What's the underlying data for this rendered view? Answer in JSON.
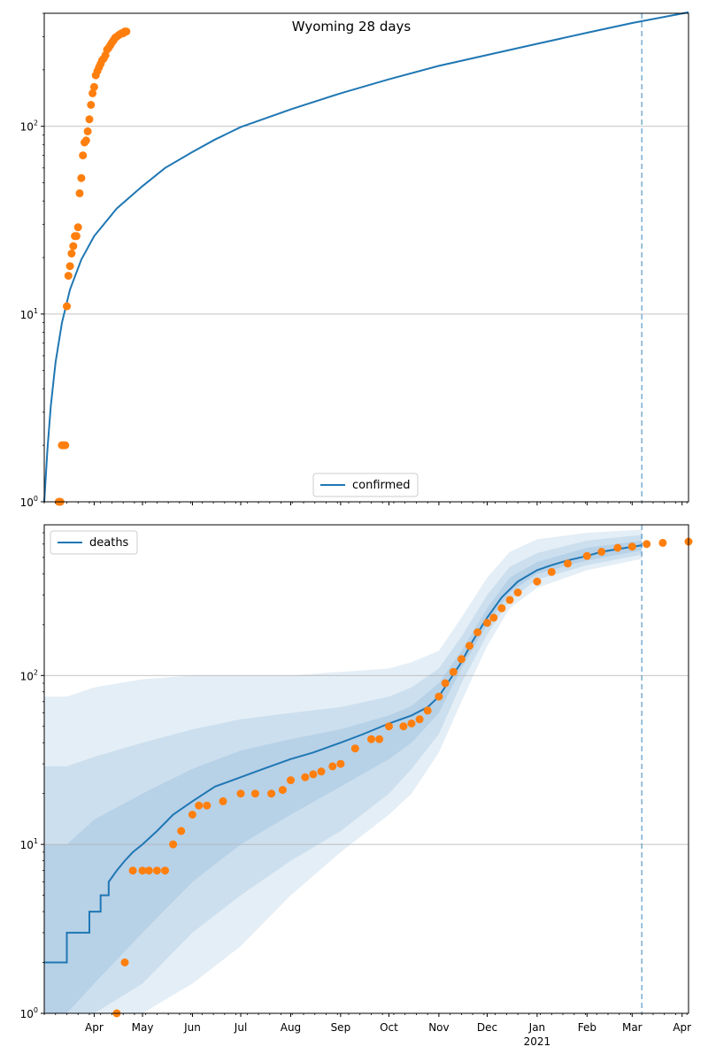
{
  "colors": {
    "model": "#1f77b4",
    "observed": "#ff7f0e",
    "grid": "#b0b0b0",
    "band": "#1f77b4",
    "forecast_line": "#1f77b4"
  },
  "chart_data": [
    {
      "type": "line",
      "title": "Wyoming 28 days",
      "xlabel": "",
      "ylabel": "",
      "yscale": "log",
      "ylim": [
        1,
        400
      ],
      "xlim": [
        "2020-03-01",
        "2021-04-05"
      ],
      "grid": "horizontal major",
      "legend": "lower center",
      "forecast_start": "2021-03-07",
      "y_ticks": [
        {
          "base": "10",
          "exp": "0",
          "value": 1
        },
        {
          "base": "10",
          "exp": "1",
          "value": 10
        },
        {
          "base": "10",
          "exp": "2",
          "value": 100
        }
      ],
      "series": [
        {
          "name": "confirmed",
          "kind": "line",
          "x": [
            "2020-03-01",
            "2020-03-03",
            "2020-03-05",
            "2020-03-08",
            "2020-03-12",
            "2020-03-17",
            "2020-03-24",
            "2020-04-01",
            "2020-04-15",
            "2020-05-01",
            "2020-05-15",
            "2020-06-01",
            "2020-06-15",
            "2020-07-01",
            "2020-08-01",
            "2020-09-01",
            "2020-10-01",
            "2020-11-01",
            "2020-12-01",
            "2021-01-01",
            "2021-02-01",
            "2021-03-01",
            "2021-04-05"
          ],
          "values": [
            1,
            1.9,
            3.2,
            5.5,
            9,
            13.5,
            19.5,
            26,
            36.5,
            48,
            60,
            73,
            85,
            99,
            123,
            150,
            178,
            210,
            240,
            275,
            315,
            355,
            405
          ]
        },
        {
          "name": "",
          "kind": "scatter",
          "x": [
            "2020-03-10",
            "2020-03-11",
            "2020-03-12",
            "2020-03-13",
            "2020-03-14",
            "2020-03-15",
            "2020-03-16",
            "2020-03-17",
            "2020-03-18",
            "2020-03-19",
            "2020-03-20",
            "2020-03-21",
            "2020-03-22",
            "2020-03-23",
            "2020-03-24",
            "2020-03-25",
            "2020-03-26",
            "2020-03-27",
            "2020-03-28",
            "2020-03-29",
            "2020-03-30",
            "2020-03-31",
            "2020-04-01",
            "2020-04-02",
            "2020-04-03",
            "2020-04-04",
            "2020-04-05",
            "2020-04-06",
            "2020-04-07",
            "2020-04-08",
            "2020-04-09",
            "2020-04-10",
            "2020-04-11",
            "2020-04-12",
            "2020-04-13",
            "2020-04-14",
            "2020-04-15",
            "2020-04-16",
            "2020-04-17",
            "2020-04-18",
            "2020-04-19",
            "2020-04-20",
            "2020-04-21"
          ],
          "values": [
            1,
            1,
            2,
            2,
            2,
            11,
            16,
            18,
            21,
            23,
            26,
            26,
            29,
            44,
            53,
            70,
            82,
            84,
            94,
            109,
            130,
            150,
            162,
            187,
            197,
            206,
            215,
            225,
            230,
            239,
            256,
            262,
            270,
            279,
            287,
            296,
            300,
            305,
            309,
            313,
            313,
            320,
            320
          ]
        }
      ]
    },
    {
      "type": "line",
      "title": "",
      "xlabel": "",
      "ylabel": "",
      "yscale": "log",
      "ylim": [
        1,
        780
      ],
      "xlim": [
        "2020-03-01",
        "2021-04-05"
      ],
      "grid": "horizontal major",
      "legend": "upper left",
      "forecast_start": "2021-03-07",
      "y_ticks": [
        {
          "base": "10",
          "exp": "0",
          "value": 1
        },
        {
          "base": "10",
          "exp": "1",
          "value": 10
        },
        {
          "base": "10",
          "exp": "2",
          "value": 100
        }
      ],
      "x_ticks": [
        {
          "date": "2020-04-01",
          "label": "Apr",
          "sub": ""
        },
        {
          "date": "2020-05-01",
          "label": "May",
          "sub": ""
        },
        {
          "date": "2020-06-01",
          "label": "Jun",
          "sub": ""
        },
        {
          "date": "2020-07-01",
          "label": "Jul",
          "sub": ""
        },
        {
          "date": "2020-08-01",
          "label": "Aug",
          "sub": ""
        },
        {
          "date": "2020-09-01",
          "label": "Sep",
          "sub": ""
        },
        {
          "date": "2020-10-01",
          "label": "Oct",
          "sub": ""
        },
        {
          "date": "2020-11-01",
          "label": "Nov",
          "sub": ""
        },
        {
          "date": "2020-12-01",
          "label": "Dec",
          "sub": ""
        },
        {
          "date": "2021-01-01",
          "label": "Jan",
          "sub": "2021"
        },
        {
          "date": "2021-02-01",
          "label": "Feb",
          "sub": ""
        },
        {
          "date": "2021-03-01",
          "label": "Mar",
          "sub": ""
        },
        {
          "date": "2021-04-01",
          "label": "Apr",
          "sub": ""
        }
      ],
      "series": [
        {
          "name": "deaths",
          "kind": "step",
          "x": [
            "2020-03-01",
            "2020-03-15",
            "2020-03-15",
            "2020-03-29",
            "2020-03-29",
            "2020-04-05",
            "2020-04-05",
            "2020-04-10",
            "2020-04-10",
            "2020-04-15",
            "2020-04-20",
            "2020-04-25",
            "2020-05-01",
            "2020-05-10",
            "2020-05-20",
            "2020-06-01",
            "2020-06-15",
            "2020-07-01",
            "2020-07-15",
            "2020-08-01",
            "2020-08-15",
            "2020-09-01",
            "2020-09-15",
            "2020-10-01",
            "2020-10-15",
            "2020-10-25",
            "2020-11-01",
            "2020-11-08",
            "2020-11-15",
            "2020-11-22",
            "2020-12-01",
            "2020-12-10",
            "2020-12-20",
            "2021-01-01",
            "2021-01-10",
            "2021-01-20",
            "2021-02-01",
            "2021-02-10",
            "2021-02-20",
            "2021-03-07"
          ],
          "values": [
            2,
            2,
            3,
            3,
            4,
            4,
            5,
            5,
            6,
            7,
            8,
            9,
            10,
            12,
            15,
            18,
            22,
            25,
            28,
            32,
            35,
            40,
            45,
            52,
            58,
            65,
            75,
            95,
            120,
            160,
            220,
            290,
            360,
            420,
            450,
            480,
            510,
            540,
            560,
            590
          ]
        },
        {
          "name": "",
          "kind": "scatter",
          "x": [
            "2020-04-15",
            "2020-04-20",
            "2020-04-25",
            "2020-05-01",
            "2020-05-05",
            "2020-05-10",
            "2020-05-15",
            "2020-05-20",
            "2020-05-25",
            "2020-06-01",
            "2020-06-05",
            "2020-06-10",
            "2020-06-20",
            "2020-07-01",
            "2020-07-10",
            "2020-07-20",
            "2020-07-27",
            "2020-08-01",
            "2020-08-10",
            "2020-08-15",
            "2020-08-20",
            "2020-08-27",
            "2020-09-01",
            "2020-09-10",
            "2020-09-20",
            "2020-09-25",
            "2020-10-01",
            "2020-10-10",
            "2020-10-15",
            "2020-10-20",
            "2020-10-25",
            "2020-11-01",
            "2020-11-05",
            "2020-11-10",
            "2020-11-15",
            "2020-11-20",
            "2020-11-25",
            "2020-12-01",
            "2020-12-05",
            "2020-12-10",
            "2020-12-15",
            "2020-12-20",
            "2021-01-01",
            "2021-01-10",
            "2021-01-20",
            "2021-02-01",
            "2021-02-10",
            "2021-02-20",
            "2021-03-01",
            "2021-03-10",
            "2021-03-20",
            "2021-04-05"
          ],
          "values": [
            1,
            2,
            7,
            7,
            7,
            7,
            7,
            10,
            12,
            15,
            17,
            17,
            18,
            20,
            20,
            20,
            21,
            24,
            25,
            26,
            27,
            29,
            30,
            37,
            42,
            42,
            50,
            50,
            52,
            55,
            62,
            75,
            90,
            105,
            125,
            150,
            180,
            205,
            220,
            250,
            280,
            310,
            360,
            410,
            460,
            510,
            540,
            570,
            580,
            600,
            610,
            620
          ]
        }
      ],
      "bands": [
        {
          "name": "",
          "x": [
            "2020-03-01",
            "2020-03-15",
            "2020-04-01",
            "2020-05-01",
            "2020-06-01",
            "2020-07-01",
            "2020-08-01",
            "2020-09-01",
            "2020-10-01",
            "2020-10-15",
            "2020-11-01",
            "2020-11-15",
            "2020-12-01",
            "2020-12-15",
            "2021-01-01",
            "2021-02-01",
            "2021-03-07"
          ],
          "lower": [
            1,
            1,
            1,
            1,
            1.5,
            2.5,
            5,
            9,
            15,
            20,
            35,
            70,
            150,
            250,
            330,
            420,
            490
          ],
          "upper": [
            75,
            75,
            85,
            95,
            100,
            100,
            100,
            105,
            110,
            120,
            140,
            220,
            380,
            540,
            640,
            700,
            730
          ]
        },
        {
          "name": "",
          "x": [
            "2020-03-01",
            "2020-03-15",
            "2020-04-01",
            "2020-05-01",
            "2020-06-01",
            "2020-07-01",
            "2020-08-01",
            "2020-09-01",
            "2020-10-01",
            "2020-10-15",
            "2020-11-01",
            "2020-11-15",
            "2020-12-01",
            "2020-12-15",
            "2021-01-01",
            "2021-02-01",
            "2021-03-07"
          ],
          "lower": [
            1,
            1,
            1,
            1.5,
            3,
            5,
            8,
            12,
            20,
            28,
            45,
            90,
            175,
            280,
            370,
            450,
            520
          ],
          "upper": [
            29,
            29,
            33,
            40,
            48,
            55,
            60,
            65,
            75,
            85,
            110,
            170,
            300,
            440,
            530,
            630,
            680
          ]
        },
        {
          "name": "",
          "x": [
            "2020-03-01",
            "2020-03-15",
            "2020-04-01",
            "2020-05-01",
            "2020-06-01",
            "2020-07-01",
            "2020-08-01",
            "2020-09-01",
            "2020-10-01",
            "2020-10-15",
            "2020-11-01",
            "2020-11-15",
            "2020-12-01",
            "2020-12-15",
            "2021-01-01",
            "2021-02-01",
            "2021-03-07"
          ],
          "lower": [
            1,
            1,
            1.5,
            3,
            6,
            10,
            15,
            22,
            32,
            40,
            60,
            110,
            200,
            310,
            400,
            480,
            550
          ],
          "upper": [
            10,
            10,
            14,
            20,
            28,
            36,
            42,
            48,
            58,
            66,
            90,
            140,
            250,
            380,
            470,
            570,
            630
          ]
        }
      ]
    }
  ]
}
